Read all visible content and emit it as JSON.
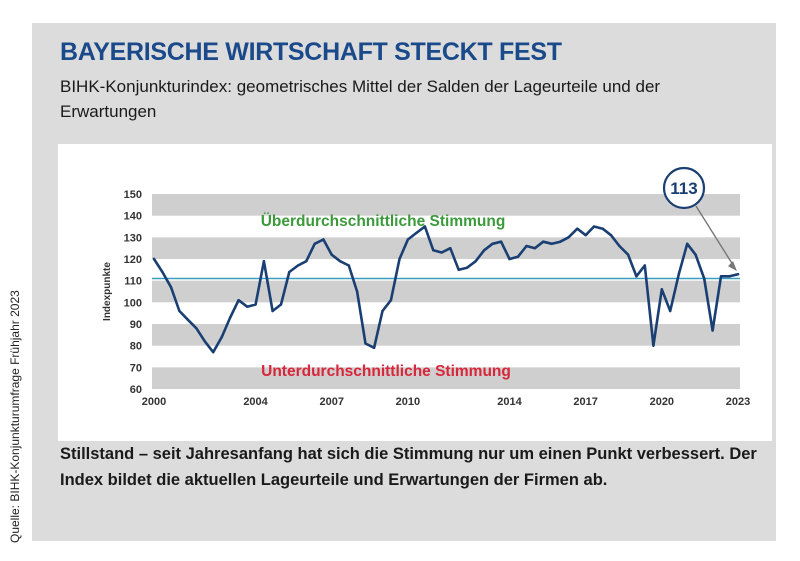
{
  "source_note": "Quelle: BIHK-Konjunkturumfrage Frühjahr 2023",
  "headline": "BAYERISCHE WIRTSCHAFT STECKT FEST",
  "subtitle": "BIHK-Konjunkturindex: geometrisches Mittel der Salden der Lageurteile und der Erwartungen",
  "caption": "Stillstand – seit Jahresanfang hat sich die Stimmung nur um einen Punkt verbessert. Der Index bildet die aktuellen Lageurteile und Erwartungen der Firmen ab.",
  "colors": {
    "line": "#1a3f73",
    "reference": "#3a9fbf",
    "above": "#3b9a3b",
    "below": "#d8263a",
    "band": "#cfcfcf",
    "title": "#1a4a8a"
  },
  "chart_data": {
    "type": "line",
    "ylabel": "Indexpunkte",
    "ylim": [
      60,
      150
    ],
    "yticks": [
      60,
      70,
      80,
      90,
      100,
      110,
      120,
      130,
      140,
      150
    ],
    "xlim": [
      2000,
      2023
    ],
    "xticks": [
      2000,
      2004,
      2007,
      2010,
      2014,
      2017,
      2020,
      2023
    ],
    "reference_line": 111,
    "above_label": "Überdurchschnittliche Stimmung",
    "below_label": "Unterdurchschnittliche Stimmung",
    "callout_value": "113",
    "series": [
      {
        "x": [
          2000.0,
          2000.33,
          2000.67,
          2001.0,
          2001.33,
          2001.67,
          2002.0,
          2002.33,
          2002.67,
          2003.0,
          2003.33,
          2003.67,
          2004.0,
          2004.33,
          2004.67,
          2005.0,
          2005.33,
          2005.67,
          2006.0,
          2006.33,
          2006.67,
          2007.0,
          2007.33,
          2007.67,
          2008.0,
          2008.33,
          2008.67,
          2009.0,
          2009.33,
          2009.67,
          2010.0,
          2010.33,
          2010.67,
          2011.0,
          2011.33,
          2011.67,
          2012.0,
          2012.33,
          2012.67,
          2013.0,
          2013.33,
          2013.67,
          2014.0,
          2014.33,
          2014.67,
          2015.0,
          2015.33,
          2015.67,
          2016.0,
          2016.33,
          2016.67,
          2017.0,
          2017.33,
          2017.67,
          2018.0,
          2018.33,
          2018.67,
          2019.0,
          2019.33,
          2019.67,
          2020.0,
          2020.33,
          2020.67,
          2021.0,
          2021.33,
          2021.67,
          2022.0,
          2022.33,
          2022.67,
          2023.0
        ],
        "values": [
          120,
          114,
          107,
          96,
          92,
          88,
          82,
          77,
          84,
          93,
          101,
          98,
          99,
          119,
          96,
          99,
          114,
          117,
          119,
          127,
          129,
          122,
          119,
          117,
          105,
          81,
          79,
          96,
          101,
          120,
          129,
          132,
          135,
          124,
          123,
          125,
          115,
          116,
          119,
          124,
          127,
          128,
          120,
          121,
          126,
          125,
          128,
          127,
          128,
          130,
          134,
          131,
          135,
          134,
          131,
          126,
          122,
          112,
          117,
          80,
          106,
          96,
          113,
          127,
          122,
          111,
          87,
          112,
          112,
          113
        ]
      }
    ]
  }
}
